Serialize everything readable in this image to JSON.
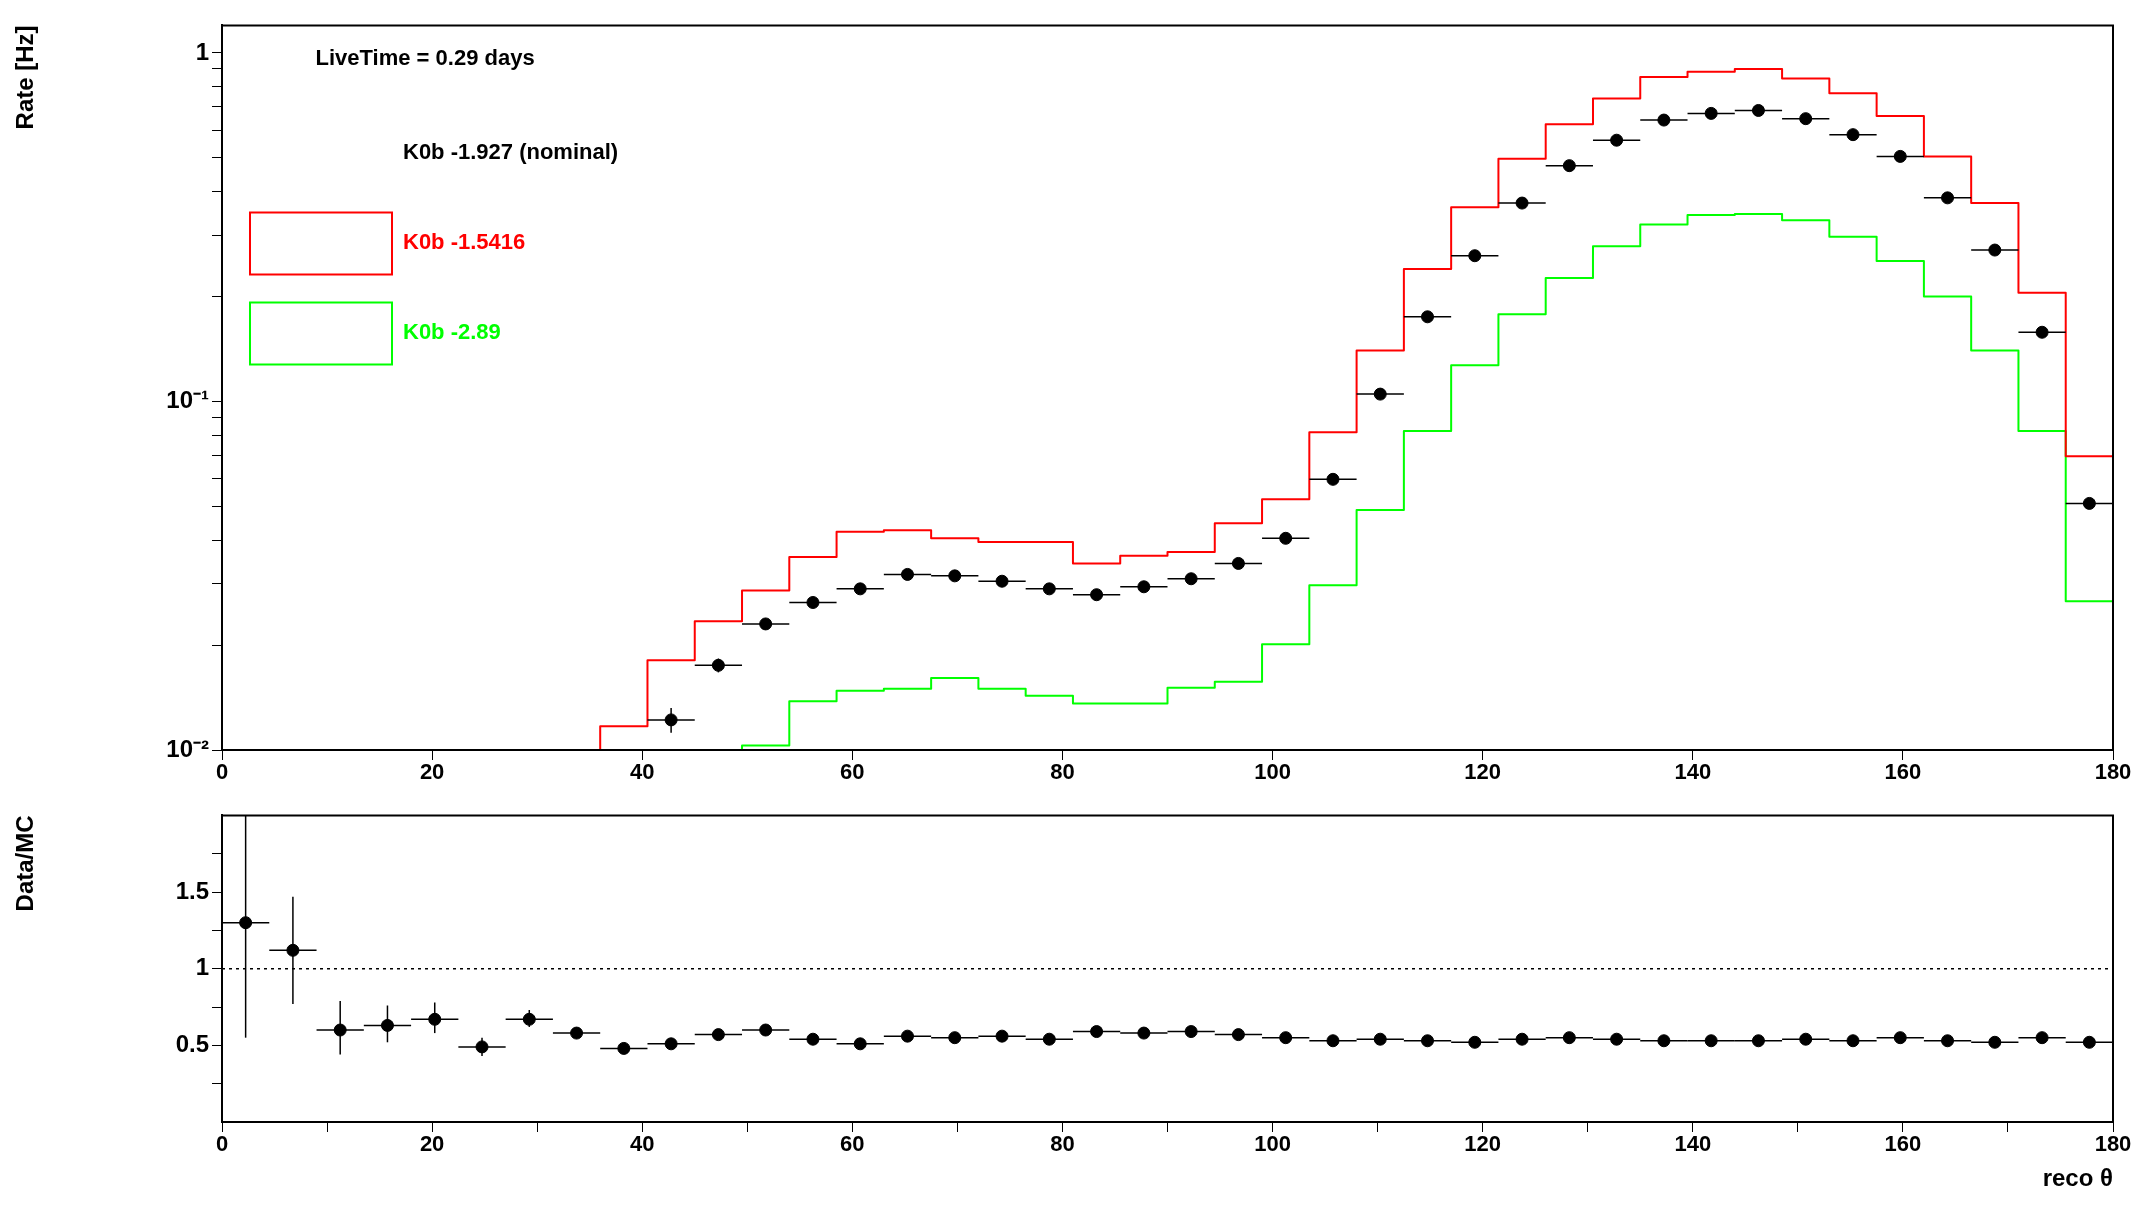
{
  "chart_data": [
    {
      "type": "histogram",
      "ylabel": "Rate [Hz]",
      "legend_title": "LiveTime = 0.29 days",
      "legend": "top left",
      "log": true,
      "bins": [
        0,
        4.5,
        9,
        13.5,
        18,
        22.5,
        27,
        31.5,
        36,
        40.5,
        45,
        49.5,
        54,
        58.5,
        63,
        67.5,
        72,
        76.5,
        81,
        85.5,
        90,
        94.5,
        99,
        103.5,
        108,
        112.5,
        117,
        121.5,
        126,
        130.5,
        135,
        139.5,
        144,
        148.5,
        153,
        157.5,
        162,
        166.5,
        171,
        175.5,
        180
      ],
      "xlim": [
        0,
        180
      ],
      "xticks": [
        0,
        20,
        40,
        60,
        80,
        100,
        120,
        140,
        160,
        180
      ],
      "ylim": [
        0.01,
        1.2
      ],
      "yticks": [
        {
          "value": 0.01,
          "label": "10⁻²"
        },
        {
          "value": 0.02,
          "label": null
        },
        {
          "value": 0.03,
          "label": null
        },
        {
          "value": 0.04,
          "label": null
        },
        {
          "value": 0.05,
          "label": null
        },
        {
          "value": 0.06,
          "label": null
        },
        {
          "value": 0.07,
          "label": null
        },
        {
          "value": 0.08,
          "label": null
        },
        {
          "value": 0.09,
          "label": null
        },
        {
          "value": 0.1,
          "label": "10⁻¹"
        },
        {
          "value": 0.2,
          "label": null
        },
        {
          "value": 0.3,
          "label": null
        },
        {
          "value": 0.4,
          "label": null
        },
        {
          "value": 0.5,
          "label": null
        },
        {
          "value": 0.6,
          "label": null
        },
        {
          "value": 0.7,
          "label": null
        },
        {
          "value": 0.8,
          "label": null
        },
        {
          "value": 0.9,
          "label": null
        },
        {
          "value": 1,
          "label": "1"
        }
      ],
      "series": [
        {
          "name": "K0b -1.927 (nominal)",
          "type": "scatter",
          "color": "#000000",
          "x": [
            null,
            null,
            null,
            null,
            null,
            null,
            null,
            null,
            null,
            42.75,
            47.25,
            51.75,
            56.25,
            60.75,
            65.25,
            69.75,
            74.25,
            78.75,
            83.25,
            87.75,
            92.25,
            96.75,
            101.25,
            105.75,
            110.25,
            114.75,
            119.25,
            123.75,
            128.25,
            132.75,
            137.25,
            141.75,
            146.25,
            150.75,
            155.25,
            159.75,
            164.25,
            168.75,
            173.25,
            177.75
          ],
          "values": [
            null,
            null,
            null,
            null,
            null,
            null,
            null,
            null,
            null,
            0.0122,
            0.0175,
            0.023,
            0.0265,
            0.029,
            0.0319,
            0.0316,
            0.0305,
            0.029,
            0.0279,
            0.0294,
            0.031,
            0.0343,
            0.0405,
            0.0598,
            0.105,
            0.175,
            0.262,
            0.371,
            0.475,
            0.562,
            0.642,
            0.671,
            0.684,
            0.648,
            0.583,
            0.505,
            0.384,
            0.272,
            0.158,
            0.051
          ],
          "errors": [
            null,
            null,
            null,
            null,
            null,
            null,
            null,
            null,
            null,
            0.001,
            0.0008,
            null,
            null,
            null,
            null,
            null,
            null,
            null,
            null,
            null,
            null,
            null,
            null,
            null,
            null,
            null,
            null,
            null,
            null,
            null,
            null,
            null,
            null,
            null,
            null,
            null,
            null,
            null,
            null,
            null
          ],
          "xerrors": [
            null,
            null,
            null,
            null,
            null,
            null,
            null,
            null,
            null,
            2.25,
            2.25,
            2.25,
            2.25,
            2.25,
            2.25,
            2.25,
            2.25,
            2.25,
            2.25,
            2.25,
            2.25,
            2.25,
            2.25,
            2.25,
            2.25,
            2.25,
            2.25,
            2.25,
            2.25,
            2.25,
            2.25,
            2.25,
            2.25,
            2.25,
            2.25,
            2.25,
            2.25,
            2.25,
            2.25,
            2.25
          ]
        },
        {
          "name": "K0b -1.5416",
          "color": "#ff0000",
          "values": [
            0.01,
            0.01,
            0.01,
            0.01,
            0.01,
            0.01,
            0.01,
            0.01,
            0.0117,
            0.0181,
            0.0234,
            0.0287,
            0.0358,
            0.0423,
            0.0427,
            0.0405,
            0.0395,
            0.0395,
            0.0343,
            0.0361,
            0.037,
            0.0447,
            0.0524,
            0.0816,
            0.14,
            0.24,
            0.361,
            0.497,
            0.625,
            0.74,
            0.853,
            0.884,
            0.899,
            0.845,
            0.767,
            0.659,
            0.505,
            0.371,
            0.205,
            0.0696
          ]
        },
        {
          "name": "K0b -2.89",
          "color": "#00ff00",
          "values": [
            0.01,
            0.01,
            0.01,
            0.01,
            0.01,
            0.01,
            0.01,
            0.01,
            0.01,
            0.01,
            0.01,
            0.0103,
            0.0138,
            0.0148,
            0.015,
            0.0161,
            0.015,
            0.0143,
            0.0136,
            0.0136,
            0.0151,
            0.0157,
            0.0201,
            0.0297,
            0.0488,
            0.0823,
            0.127,
            0.178,
            0.226,
            0.279,
            0.322,
            0.343,
            0.345,
            0.331,
            0.297,
            0.253,
            0.2,
            0.14,
            0.0823,
            0.0267
          ]
        }
      ]
    },
    {
      "type": "scatter",
      "ylabel": "Data/MC",
      "xlabel": "reco θ",
      "color": "#000000",
      "x": [
        2.25,
        6.75,
        11.25,
        15.75,
        20.25,
        24.75,
        29.25,
        33.75,
        38.25,
        42.75,
        47.25,
        51.75,
        56.25,
        60.75,
        65.25,
        69.75,
        74.25,
        78.75,
        83.25,
        87.75,
        92.25,
        96.75,
        101.25,
        105.75,
        110.25,
        114.75,
        119.25,
        123.75,
        128.25,
        132.75,
        137.25,
        141.75,
        146.25,
        150.75,
        155.25,
        159.75,
        164.25,
        168.75,
        173.25,
        177.75
      ],
      "values": [
        1.3,
        1.12,
        0.6,
        0.63,
        0.67,
        0.49,
        0.67,
        0.58,
        0.48,
        0.51,
        0.57,
        0.6,
        0.54,
        0.51,
        0.56,
        0.55,
        0.56,
        0.54,
        0.59,
        0.58,
        0.59,
        0.57,
        0.55,
        0.53,
        0.54,
        0.53,
        0.52,
        0.54,
        0.55,
        0.54,
        0.53,
        0.53,
        0.53,
        0.54,
        0.53,
        0.55,
        0.53,
        0.52,
        0.55,
        0.52
      ],
      "errors": [
        [
          0.55,
          2
        ],
        [
          0.77,
          1.47
        ],
        [
          0.44,
          0.79
        ],
        [
          0.52,
          0.76
        ],
        [
          0.58,
          0.78
        ],
        [
          0.43,
          0.55
        ],
        [
          0.62,
          0.73
        ],
        0.03,
        null,
        null,
        null,
        null,
        null,
        null,
        null,
        null,
        null,
        null,
        null,
        null,
        null,
        null,
        null,
        null,
        null,
        null,
        null,
        null,
        null,
        null,
        null,
        null,
        null,
        null,
        null,
        null,
        null,
        null,
        null,
        null
      ],
      "xerrors": [
        2.25,
        2.25,
        2.25,
        2.25,
        2.25,
        2.25,
        2.25,
        2.25,
        2.25,
        2.25,
        2.25,
        2.25,
        2.25,
        2.25,
        2.25,
        2.25,
        2.25,
        2.25,
        2.25,
        2.25,
        2.25,
        2.25,
        2.25,
        2.25,
        2.25,
        2.25,
        2.25,
        2.25,
        2.25,
        2.25,
        2.25,
        2.25,
        2.25,
        2.25,
        2.25,
        2.25,
        2.25,
        2.25,
        2.25,
        2.25
      ],
      "xlim": [
        0,
        180
      ],
      "xticks": [
        0,
        {
          "value": 10,
          "label": null
        },
        20,
        {
          "value": 30,
          "label": null
        },
        40,
        {
          "value": 50,
          "label": null
        },
        60,
        {
          "value": 70,
          "label": null
        },
        80,
        {
          "value": 90,
          "label": null
        },
        100,
        {
          "value": 110,
          "label": null
        },
        120,
        {
          "value": 130,
          "label": null
        },
        140,
        {
          "value": 150,
          "label": null
        },
        160,
        {
          "value": 170,
          "label": null
        },
        180
      ],
      "ylim": [
        0,
        2
      ],
      "yticks": [
        {
          "value": 0.25,
          "label": null
        },
        0.5,
        {
          "value": 0.75,
          "label": null
        },
        1,
        {
          "value": 1.25,
          "label": null
        },
        1.5,
        {
          "value": 1.75,
          "label": null
        }
      ],
      "ref_lines": [
        {
          "axis": "y",
          "value": 1,
          "line_style": "dotted",
          "color": "#000000"
        }
      ]
    }
  ]
}
